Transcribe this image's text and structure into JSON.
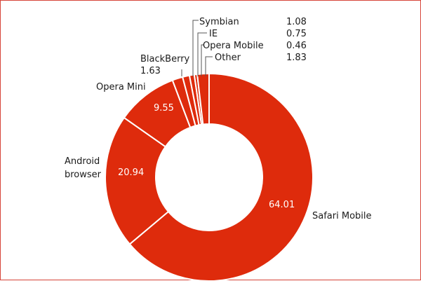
{
  "chart_data": {
    "type": "pie",
    "variant": "donut",
    "title": "",
    "colors": {
      "slice": "#de2b0c",
      "border": "#ffffff",
      "frame": "#d6453a",
      "text": "#1a1a1a"
    },
    "slices": [
      {
        "label": "Safari Mobile",
        "value": 64.01
      },
      {
        "label": "Android browser",
        "value": 20.94
      },
      {
        "label": "Opera Mini",
        "value": 9.55
      },
      {
        "label": "BlackBerry",
        "value": 1.63
      },
      {
        "label": "Symbian",
        "value": 1.08
      },
      {
        "label": "IE",
        "value": 0.75
      },
      {
        "label": "Opera Mobile",
        "value": 0.46
      },
      {
        "label": "Other",
        "value": 1.83
      }
    ],
    "labels": {
      "safari": "Safari Mobile",
      "android_line1": "Android",
      "android_line2": "browser",
      "opera_mini": "Opera Mini",
      "blackberry": "BlackBerry",
      "symbian": "Symbian",
      "ie": "IE",
      "opera_mobile": "Opera Mobile",
      "other": "Other"
    },
    "value_labels": {
      "safari": "64.01",
      "android": "20.94",
      "opera_mini": "9.55",
      "blackberry": "1.63",
      "symbian": "1.08",
      "ie": "0.75",
      "opera_mobile": "0.46",
      "other": "1.83"
    }
  }
}
